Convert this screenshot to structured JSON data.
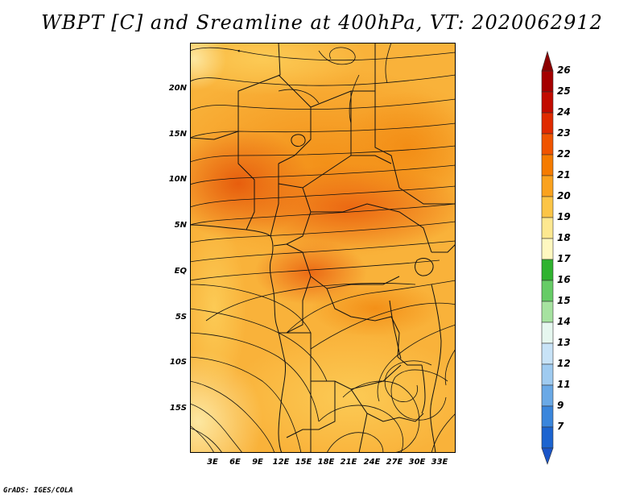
{
  "title": "WBPT [C] and Sreamline at 400hPa, VT: 2020062912",
  "credit": "GrADS: IGES/COLA",
  "map": {
    "lat_ticks": [
      "20N",
      "15N",
      "10N",
      "5N",
      "EQ",
      "5S",
      "10S",
      "15S"
    ],
    "lon_ticks": [
      "3E",
      "6E",
      "9E",
      "12E",
      "15E",
      "18E",
      "21E",
      "24E",
      "27E",
      "30E",
      "33E"
    ]
  },
  "colorbar": {
    "labels": [
      "26",
      "25",
      "24",
      "23",
      "22",
      "21",
      "20",
      "19",
      "18",
      "17",
      "16",
      "15",
      "14",
      "13",
      "12",
      "11",
      "9",
      "7"
    ],
    "colors": [
      "#a50000",
      "#c20b00",
      "#e02a00",
      "#f05400",
      "#f57b00",
      "#faa21e",
      "#fcc546",
      "#fde890",
      "#fff8c0",
      "#2fb32f",
      "#66cc66",
      "#a6e2a0",
      "#e6f7ef",
      "#c8e3f7",
      "#9fcbf0",
      "#6aa9e6",
      "#3a86dc",
      "#1c64d0"
    ],
    "top_arrow_color": "#8c0000",
    "bottom_arrow_color": "#1a55c8"
  }
}
